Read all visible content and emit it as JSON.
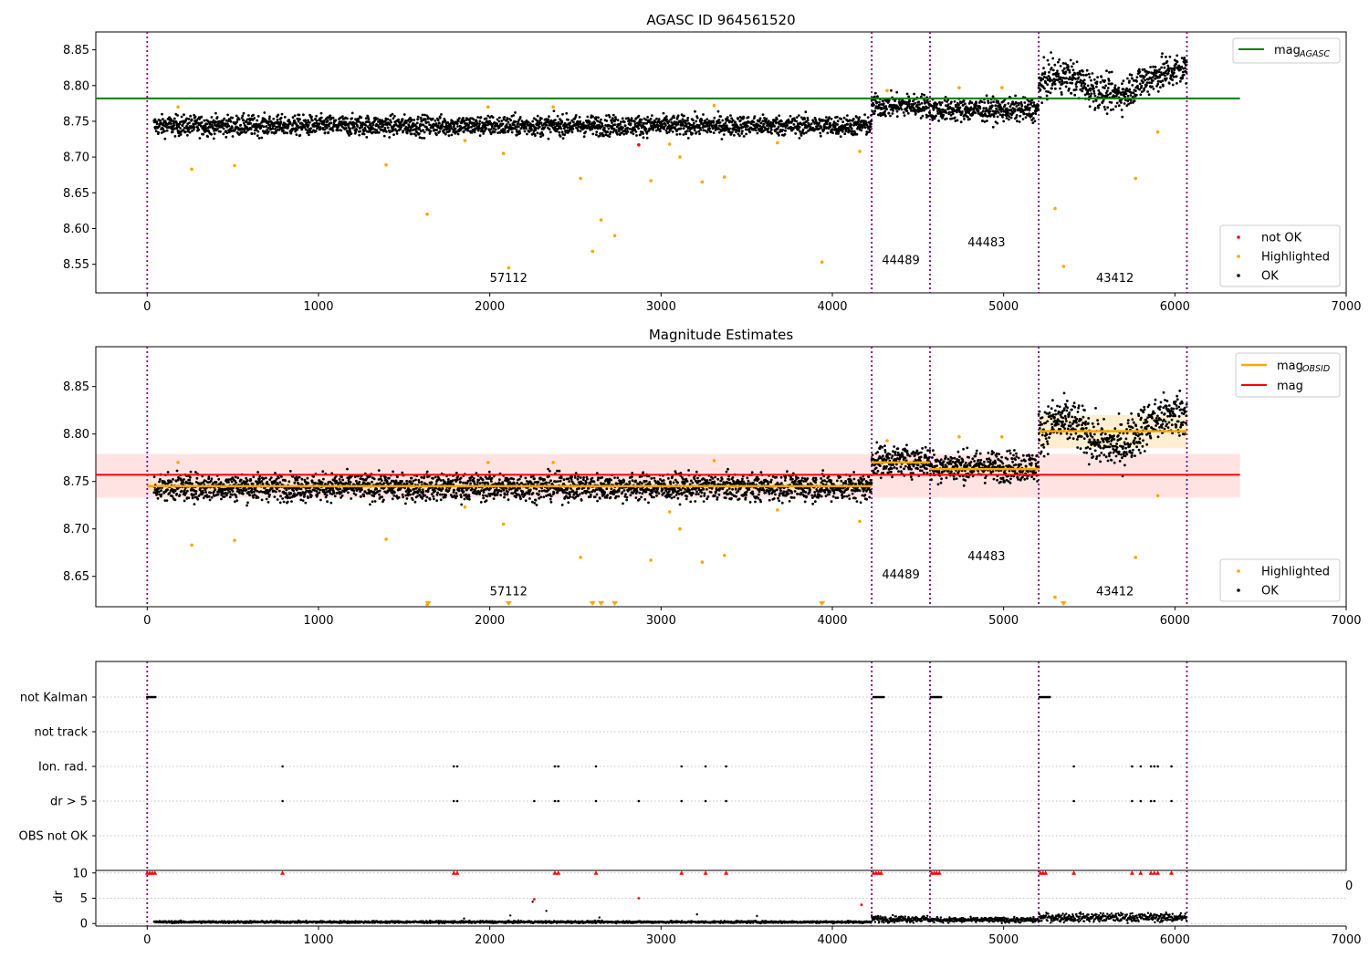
{
  "figure": {
    "title": "AGASC ID 964561520"
  },
  "chart_data": [
    {
      "type": "scatter",
      "title": "AGASC ID 964561520",
      "xlabel": "",
      "ylabel": "",
      "xlim": [
        -300,
        7000
      ],
      "ylim": [
        8.51,
        8.875
      ],
      "xticks": [
        0,
        1000,
        2000,
        3000,
        4000,
        5000,
        6000,
        7000
      ],
      "yticks": [
        8.55,
        8.6,
        8.65,
        8.7,
        8.75,
        8.8,
        8.85
      ],
      "obsid_boundaries": [
        0,
        4230,
        4570,
        5205,
        6070
      ],
      "obsid_labels": [
        {
          "text": "57112",
          "x": 2110,
          "y": 8.525
        },
        {
          "text": "44489",
          "x": 4400,
          "y": 8.55
        },
        {
          "text": "44483",
          "x": 4900,
          "y": 8.575
        },
        {
          "text": "43412",
          "x": 5650,
          "y": 8.525
        }
      ],
      "reference_lines": [
        {
          "name": "mag_AGASC",
          "value": 8.782,
          "x_range": [
            -300,
            6380
          ],
          "color": "#008000"
        }
      ],
      "segments": [
        {
          "x_range": [
            40,
            4230
          ],
          "mean": 8.744,
          "scatter": 0.007
        },
        {
          "x_range": [
            4230,
            4570
          ],
          "mean": 8.772,
          "scatter": 0.008
        },
        {
          "x_range": [
            4570,
            5205
          ],
          "mean": 8.766,
          "scatter": 0.008
        },
        {
          "x_range": [
            5205,
            6070
          ],
          "mean": 8.8,
          "scatter": 0.012
        }
      ],
      "highlighted_points": [
        [
          180,
          8.77
        ],
        [
          260,
          8.683
        ],
        [
          510,
          8.688
        ],
        [
          1395,
          8.689
        ],
        [
          1635,
          8.62
        ],
        [
          1855,
          8.723
        ],
        [
          1990,
          8.77
        ],
        [
          2080,
          8.705
        ],
        [
          2110,
          8.545
        ],
        [
          2370,
          8.77
        ],
        [
          2530,
          8.67
        ],
        [
          2600,
          8.568
        ],
        [
          2650,
          8.612
        ],
        [
          2730,
          8.59
        ],
        [
          2940,
          8.667
        ],
        [
          3050,
          8.718
        ],
        [
          3110,
          8.7
        ],
        [
          3240,
          8.665
        ],
        [
          3310,
          8.772
        ],
        [
          3370,
          8.672
        ],
        [
          3680,
          8.72
        ],
        [
          3940,
          8.553
        ],
        [
          4160,
          8.708
        ],
        [
          4320,
          8.793
        ],
        [
          4740,
          8.797
        ],
        [
          4990,
          8.797
        ],
        [
          5300,
          8.628
        ],
        [
          5350,
          8.547
        ],
        [
          5770,
          8.67
        ],
        [
          5900,
          8.735
        ]
      ],
      "not_ok_points": [
        [
          2870,
          8.717
        ]
      ],
      "legend": {
        "placement": "upper right",
        "entries": [
          {
            "label": "mag",
            "subscript": "AGASC",
            "color": "#008000"
          }
        ]
      },
      "legend2": {
        "placement": "lower right",
        "entries": [
          {
            "label": "not OK",
            "color": "#ff0000"
          },
          {
            "label": "Highlighted",
            "color": "#ffa500"
          },
          {
            "label": "OK",
            "color": "#000000"
          }
        ]
      }
    },
    {
      "type": "scatter",
      "title": "Magnitude Estimates",
      "xlabel": "",
      "ylabel": "",
      "xlim": [
        -300,
        7000
      ],
      "ylim": [
        8.618,
        8.892
      ],
      "xticks": [
        0,
        1000,
        2000,
        3000,
        4000,
        5000,
        6000,
        7000
      ],
      "yticks": [
        8.65,
        8.7,
        8.75,
        8.8,
        8.85
      ],
      "obsid_boundaries": [
        0,
        4230,
        4570,
        5205,
        6070
      ],
      "obsid_labels": [
        {
          "text": "57112",
          "x": 2110,
          "y": 8.63
        },
        {
          "text": "44489",
          "x": 4400,
          "y": 8.648
        },
        {
          "text": "44483",
          "x": 4900,
          "y": 8.667
        },
        {
          "text": "43412",
          "x": 5650,
          "y": 8.63
        }
      ],
      "mag_line": {
        "value": 8.757,
        "band": [
          8.733,
          8.779
        ],
        "x_range": [
          -300,
          6380
        ],
        "color": "#ff0000"
      },
      "obsid_mags": [
        {
          "x_range": [
            0,
            4230
          ],
          "value": 8.745,
          "band": [
            8.74,
            8.75
          ]
        },
        {
          "x_range": [
            4230,
            4570
          ],
          "value": 8.77,
          "band": [
            8.766,
            8.774
          ]
        },
        {
          "x_range": [
            4570,
            5205
          ],
          "value": 8.763,
          "band": [
            8.759,
            8.767
          ]
        },
        {
          "x_range": [
            5205,
            6070
          ],
          "value": 8.803,
          "band": [
            8.785,
            8.82
          ]
        }
      ],
      "clipped_markers": [
        1640,
        2110,
        2600,
        2650,
        2730,
        3940,
        5350
      ],
      "legend": {
        "placement": "upper right",
        "entries": [
          {
            "label": "mag",
            "subscript": "OBSID",
            "color": "#ffa500"
          },
          {
            "label": "mag",
            "subscript": "",
            "color": "#ff0000"
          }
        ]
      },
      "legend2": {
        "placement": "lower right",
        "entries": [
          {
            "label": "Highlighted",
            "color": "#ffa500"
          },
          {
            "label": "OK",
            "color": "#000000"
          }
        ]
      }
    },
    {
      "type": "scatter",
      "title": "",
      "xlabel": "",
      "ylabel": "",
      "xlim": [
        -300,
        7000
      ],
      "flag_rows": [
        "not Kalman",
        "not track",
        "Ion. rad.",
        "dr > 5",
        "OBS not OK"
      ],
      "flag_points": {
        "not Kalman": {
          "clusters": [
            [
              0,
              50
            ],
            [
              4240,
              4300
            ],
            [
              4575,
              4640
            ],
            [
              5210,
              5270
            ]
          ]
        },
        "not track": {
          "clusters": []
        },
        "Ion. rad.": {
          "x": [
            790,
            1790,
            1810,
            2380,
            2400,
            2620,
            3120,
            3260,
            3380,
            5410,
            5750,
            5800,
            5860,
            5880,
            5900,
            5980
          ]
        },
        "dr > 5": {
          "x": [
            790,
            1790,
            1810,
            2260,
            2380,
            2400,
            2620,
            2870,
            3120,
            3260,
            3380,
            5410,
            5750,
            5800,
            5860,
            5880,
            5980
          ]
        },
        "OBS not OK": {
          "clusters": []
        }
      }
    },
    {
      "type": "scatter",
      "title": "",
      "xlabel": "",
      "ylabel": "dr",
      "xlim": [
        -300,
        7000
      ],
      "ylim": [
        -0.5,
        10.5
      ],
      "xticks": [
        0,
        1000,
        2000,
        3000,
        4000,
        5000,
        6000,
        7000
      ],
      "yticks": [
        0,
        5,
        10
      ],
      "clip_value": 10,
      "clipped_x": [
        0,
        15,
        30,
        45,
        790,
        1790,
        1810,
        2380,
        2400,
        2620,
        3120,
        3260,
        3380,
        4240,
        4255,
        4270,
        4285,
        4580,
        4595,
        4610,
        4625,
        5215,
        5230,
        5245,
        5410,
        5750,
        5800,
        5860,
        5880,
        5900,
        5980
      ],
      "segments": [
        {
          "x_range": [
            40,
            4230
          ],
          "mean": 0.3
        },
        {
          "x_range": [
            4230,
            4570
          ],
          "mean": 0.9
        },
        {
          "x_range": [
            4570,
            5205
          ],
          "mean": 0.7
        },
        {
          "x_range": [
            5205,
            6070
          ],
          "mean": 1.2
        }
      ],
      "outliers": [
        [
          2260,
          4.8
        ],
        [
          2250,
          4.3
        ],
        [
          2870,
          5.0
        ],
        [
          4170,
          3.7
        ],
        [
          2330,
          2.5
        ],
        [
          2120,
          1.6
        ],
        [
          3210,
          1.8
        ],
        [
          3560,
          1.5
        ],
        [
          2640,
          1.2
        ],
        [
          1850,
          1.0
        ]
      ],
      "partial_label": "0"
    }
  ],
  "colors": {
    "ok": "#000000",
    "highlighted": "#ffa500",
    "not_ok": "#ff0000",
    "boundary": "#800080",
    "agasc": "#008000",
    "mag": "#ff0000",
    "mag_band": "#ffc0c0",
    "obsid_band": "#ffe4b0"
  }
}
